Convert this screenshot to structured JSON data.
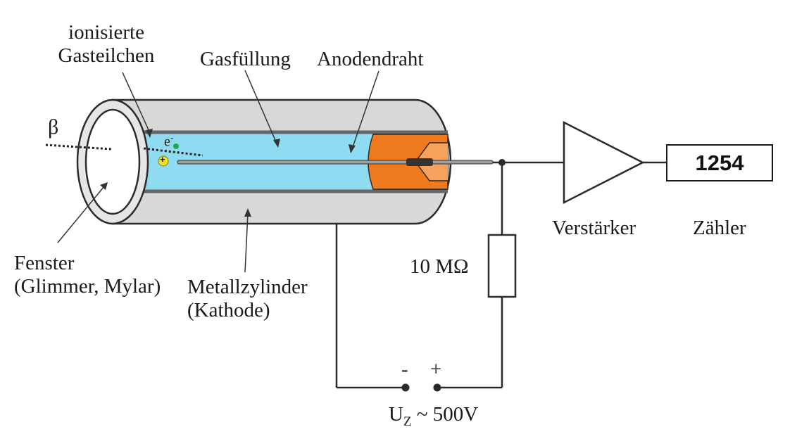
{
  "labels": {
    "ionized_line1": "ionisierte",
    "ionized_line2": "Gasteilchen",
    "gas_fill": "Gasfüllung",
    "anode_wire": "Anodendraht",
    "beta": "β",
    "electron": "e",
    "electron_sup": "-",
    "ion_plus": "+",
    "window_line1": "Fenster",
    "window_line2": "(Glimmer, Mylar)",
    "cylinder_line1": "Metallzylinder",
    "cylinder_line2": "(Kathode)",
    "resistor": "10 MΩ",
    "amplifier": "Verstärker",
    "counter": "Zähler",
    "minus": "-",
    "plus": "+",
    "voltage_u": "U",
    "voltage_sub": "Z",
    "voltage_rest": " ~ 500V"
  },
  "counter_value": "1254",
  "colors": {
    "gas": "#8fdcf2",
    "metal": "#d8d8d8",
    "insulator": "#f07b1e",
    "outline": "#2b2b2b",
    "ion": "#f2e227",
    "electron": "#1fa84a"
  }
}
